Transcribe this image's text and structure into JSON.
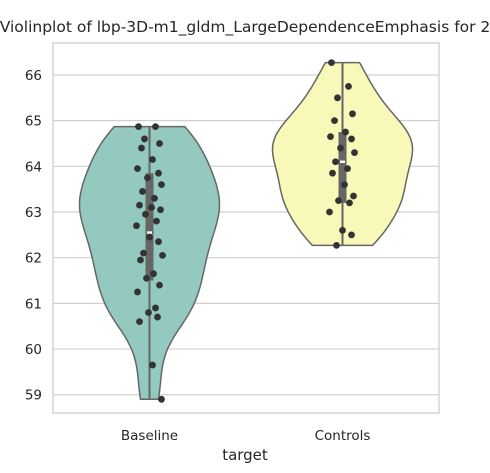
{
  "chart_data": {
    "type": "violin",
    "title": "Violinplot of lbp-3D-m1_gldm_LargeDependenceEmphasis for 2",
    "xlabel": "target",
    "ylabel": "",
    "ylim": [
      58.6,
      66.7
    ],
    "yticks": [
      59,
      60,
      61,
      62,
      63,
      64,
      65,
      66
    ],
    "grid": "horizontal",
    "categories": [
      "Baseline",
      "Controls"
    ],
    "colors": {
      "Baseline": "#93c9bf",
      "Controls": "#f8f8b8",
      "outline": "#666666",
      "points": "#333333",
      "grid": "#d0d0d0"
    },
    "series": [
      {
        "name": "Baseline",
        "min": 58.9,
        "q1": 61.5,
        "median": 62.55,
        "q3": 63.85,
        "max": 64.87,
        "points": [
          64.87,
          64.87,
          64.6,
          64.5,
          64.4,
          64.15,
          63.95,
          63.85,
          63.75,
          63.6,
          63.45,
          63.3,
          63.15,
          63.1,
          63.05,
          62.95,
          62.8,
          62.7,
          62.45,
          62.35,
          62.1,
          62.05,
          61.95,
          61.65,
          61.55,
          61.4,
          61.25,
          60.9,
          60.8,
          60.7,
          60.6,
          59.65,
          58.9
        ]
      },
      {
        "name": "Controls",
        "min": 62.27,
        "q1": 63.2,
        "median": 64.1,
        "q3": 64.75,
        "max": 66.27,
        "points": [
          66.27,
          65.75,
          65.5,
          65.15,
          65.0,
          64.75,
          64.65,
          64.6,
          64.4,
          64.3,
          64.1,
          63.95,
          63.85,
          63.6,
          63.35,
          63.25,
          63.2,
          63.0,
          62.6,
          62.5,
          62.27
        ]
      }
    ]
  }
}
